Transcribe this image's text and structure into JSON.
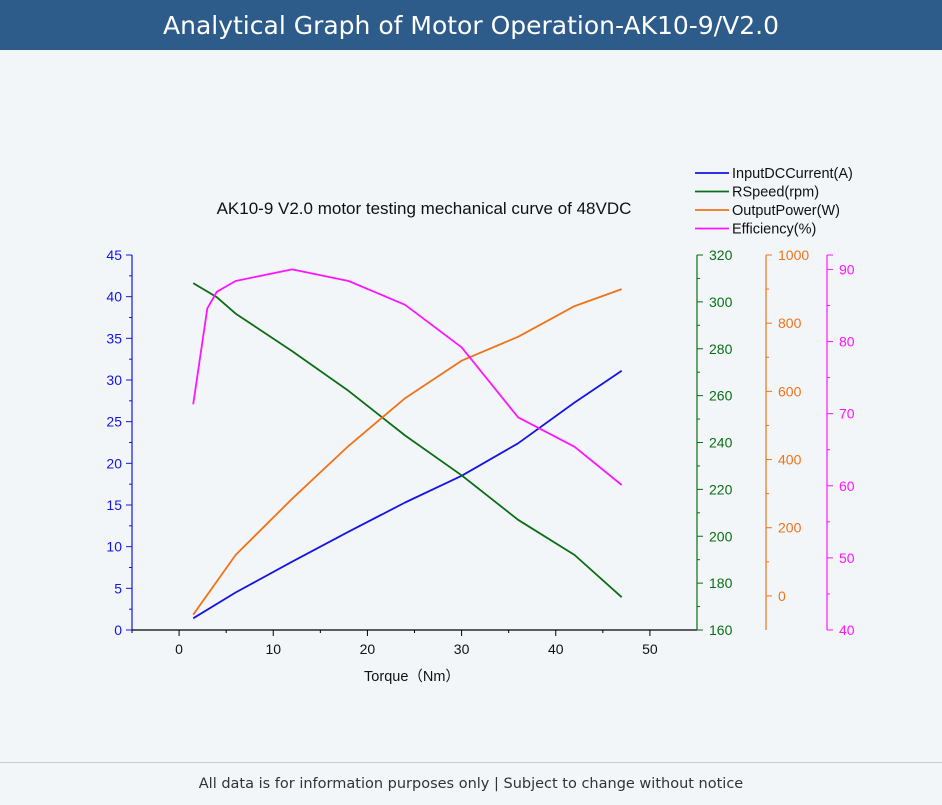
{
  "header": {
    "title": "Analytical Graph of Motor Operation-AK10-9/V2.0"
  },
  "footer": {
    "note": "All data is for information purposes only | Subject to change without notice"
  },
  "colors": {
    "header_bg": "#2e5c8a",
    "current": "#1414e6",
    "speed": "#0a6e14",
    "power": "#f07318",
    "efficiency": "#ff14ff"
  },
  "chart_data": {
    "type": "line",
    "title": "AK10-9 V2.0 motor testing mechanical  curve of 48VDC",
    "xlabel": "Torque（Nm）",
    "xlim": [
      -5,
      55
    ],
    "xticks": [
      0,
      10,
      20,
      30,
      40,
      50
    ],
    "legend_position": "top-right",
    "grid": false,
    "axes": {
      "current": {
        "ylim": [
          0,
          45
        ],
        "ticks": [
          0,
          5,
          10,
          15,
          20,
          25,
          30,
          35,
          40,
          45
        ],
        "side": "left"
      },
      "speed": {
        "ylim": [
          160,
          320
        ],
        "ticks": [
          160,
          180,
          200,
          220,
          240,
          260,
          280,
          300,
          320
        ],
        "side": "right-1"
      },
      "power": {
        "ylim": [
          -100,
          1000
        ],
        "ticks": [
          0,
          200,
          400,
          600,
          800,
          1000
        ],
        "side": "right-2"
      },
      "efficiency": {
        "ylim": [
          40,
          92
        ],
        "ticks": [
          40,
          50,
          60,
          70,
          80,
          90
        ],
        "side": "right-3"
      }
    },
    "series": [
      {
        "key": "current",
        "name": "InputDCCurrent(A)",
        "axis": "current",
        "x": [
          1.5,
          6,
          12,
          18,
          24,
          30,
          36,
          42,
          47
        ],
        "y": [
          1.4,
          4.5,
          8.2,
          11.8,
          15.3,
          18.5,
          22.4,
          27.3,
          31.1
        ]
      },
      {
        "key": "speed",
        "name": "RSpeed(rpm)",
        "axis": "speed",
        "x": [
          1.5,
          4,
          6,
          12,
          18,
          24,
          30,
          36,
          42,
          47
        ],
        "y": [
          308,
          302,
          295,
          279,
          262,
          243,
          226,
          207,
          192,
          174
        ]
      },
      {
        "key": "power",
        "name": "OutputPower(W)",
        "axis": "power",
        "x": [
          1.5,
          6,
          12,
          18,
          24,
          30,
          36,
          42,
          47
        ],
        "y": [
          -55,
          120,
          285,
          440,
          580,
          690,
          760,
          850,
          900
        ]
      },
      {
        "key": "efficiency",
        "name": "Efficiency(%)",
        "axis": "efficiency",
        "x": [
          1.5,
          3,
          4,
          6,
          12,
          18,
          24,
          30,
          36,
          42,
          47
        ],
        "y": [
          71.3,
          84.6,
          86.9,
          88.4,
          90,
          88.4,
          85.1,
          79.2,
          69.5,
          65.4,
          60.1
        ]
      }
    ]
  }
}
